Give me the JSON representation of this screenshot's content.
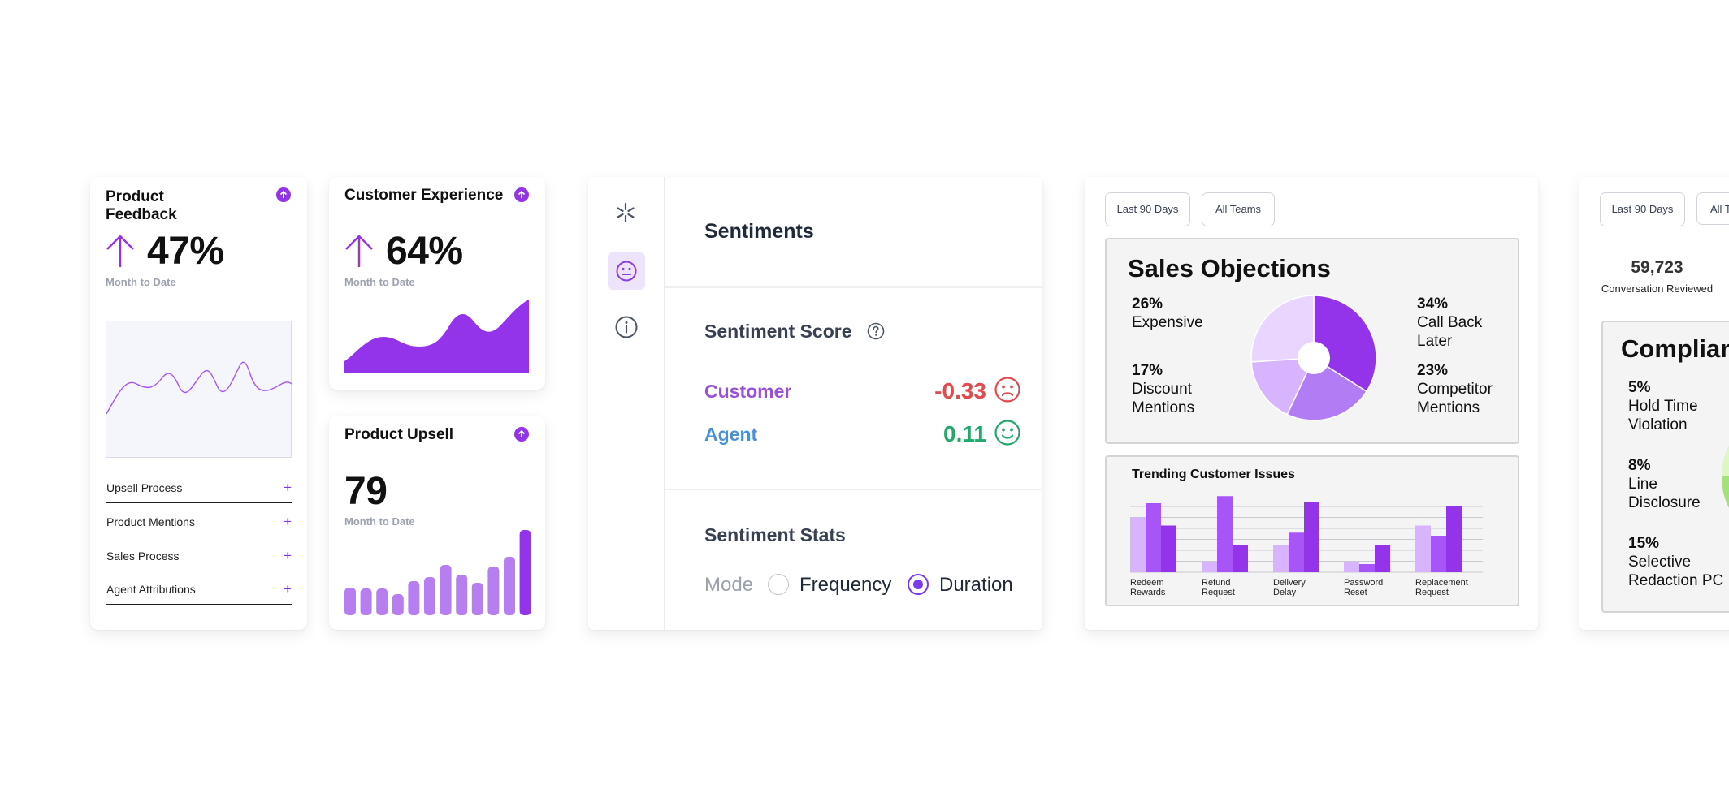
{
  "kpis": {
    "product_feedback": {
      "title": "Product Feedback",
      "value": "47%",
      "sub": "Month to Date"
    },
    "customer_experience": {
      "title": "Customer Experience",
      "value": "64%",
      "sub": "Month to Date"
    },
    "product_upsell": {
      "title": "Product Upsell",
      "value": "79",
      "sub": "Month to Date",
      "bars": [
        34,
        33,
        33,
        26,
        42,
        47,
        62,
        50,
        40,
        60,
        72,
        105
      ]
    }
  },
  "feedback_list": [
    "Upsell Process",
    "Product Mentions",
    "Sales Process",
    "Agent Attributions"
  ],
  "sentiments": {
    "title": "Sentiments",
    "score_title": "Sentiment Score",
    "customer_label": "Customer",
    "customer_value": "-0.33",
    "agent_label": "Agent",
    "agent_value": "0.11",
    "stats_title": "Sentiment Stats",
    "mode_label": "Mode",
    "option_frequency": "Frequency",
    "option_duration": "Duration",
    "selected": "Duration"
  },
  "sales": {
    "filters": [
      "Last 90 Days",
      "All Teams"
    ],
    "title": "Sales Objections",
    "objections": [
      {
        "pct": "26%",
        "label": "Expensive",
        "value": 26,
        "color": "#e9d5ff"
      },
      {
        "pct": "17%",
        "label": "Discount Mentions",
        "value": 17,
        "color": "#d8b4fe"
      },
      {
        "pct": "34%",
        "label": "Call Back Later",
        "value": 34,
        "color": "#9333ea"
      },
      {
        "pct": "23%",
        "label": "Competitor Mentions",
        "value": 23,
        "color": "#b27cf5"
      }
    ]
  },
  "trending": {
    "title": "Trending Customer Issues",
    "chart_data": {
      "type": "bar",
      "categories": [
        "Redeem Rewards",
        "Refund Request",
        "Delivery Delay",
        "Password Reset",
        "Replacement Request"
      ],
      "series": [
        {
          "values": [
            54,
            10,
            27,
            10,
            46
          ],
          "color": "#d8b4fe"
        },
        {
          "values": [
            68,
            75,
            39,
            8,
            36
          ],
          "color": "#a855f7"
        },
        {
          "values": [
            46,
            27,
            69,
            27,
            65
          ],
          "color": "#9333ea"
        }
      ],
      "ylim": [
        0,
        80
      ]
    }
  },
  "compliance": {
    "filters": [
      "Last 90 Days",
      "All T"
    ],
    "count": "59,723",
    "count_label": "Conversation Reviewed",
    "title": "Complian",
    "items": [
      {
        "pct": "5%",
        "label": "Hold Time Violation"
      },
      {
        "pct": "8%",
        "label": "Line Disclosure"
      },
      {
        "pct": "15%",
        "label": "Selective Redaction PC"
      }
    ]
  }
}
